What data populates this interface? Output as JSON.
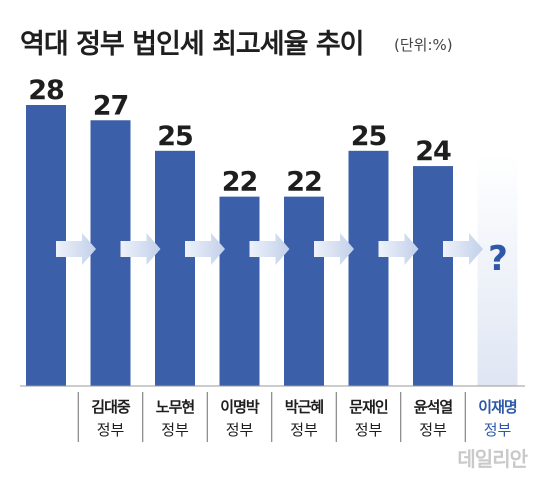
{
  "header": {
    "title": "역대 정부 법인세 최고세율 추이",
    "unit": "(단위:%)"
  },
  "watermark": "데일리안",
  "colors": {
    "bar": "#3c5fa9",
    "future_bar_top": "#ffffff",
    "future_bar_bottom": "#dfe6f3",
    "value_text": "#1e1e1e",
    "highlight_text": "#2f59a8",
    "arrow": "#c8d4ea"
  },
  "chart_data": {
    "type": "bar",
    "title": "역대 정부 법인세 최고세율 추이",
    "unit": "%",
    "ylim": [
      0,
      28
    ],
    "categories": [
      {
        "name": "",
        "sub": ""
      },
      {
        "name": "김대중",
        "sub": "정부"
      },
      {
        "name": "노무현",
        "sub": "정부"
      },
      {
        "name": "이명박",
        "sub": "정부"
      },
      {
        "name": "박근혜",
        "sub": "정부"
      },
      {
        "name": "문재인",
        "sub": "정부"
      },
      {
        "name": "윤석열",
        "sub": "정부"
      },
      {
        "name": "이재명",
        "sub": "정부"
      }
    ],
    "values": [
      28,
      27,
      25,
      22,
      22,
      25,
      24,
      null
    ],
    "value_labels": [
      "28",
      "27",
      "25",
      "22",
      "22",
      "25",
      "24",
      "?"
    ],
    "highlight_last": true
  }
}
